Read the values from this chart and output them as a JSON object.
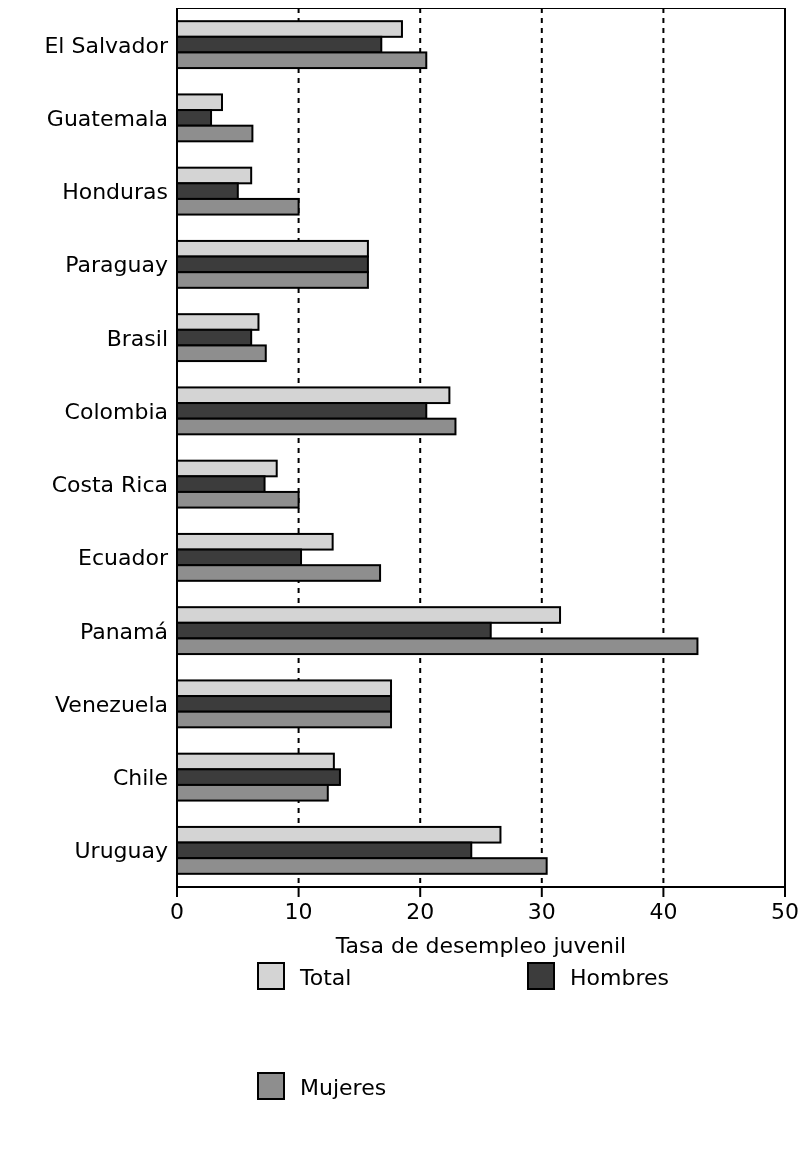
{
  "chart_data": {
    "type": "bar",
    "orientation": "horizontal",
    "xlabel": "Tasa de desempleo juvenil",
    "categories": [
      "El Salvador",
      "Guatemala",
      "Honduras",
      "Paraguay",
      "Brasil",
      "Colombia",
      "Costa Rica",
      "Ecuador",
      "Panamá",
      "Venezuela",
      "Chile",
      "Uruguay"
    ],
    "series": [
      {
        "name": "Total",
        "color": "#d4d4d4",
        "values": [
          18.5,
          3.7,
          6.1,
          15.7,
          6.7,
          22.4,
          8.2,
          12.8,
          31.5,
          17.6,
          12.9,
          26.6
        ]
      },
      {
        "name": "Hombres",
        "color": "#3c3c3c",
        "values": [
          16.8,
          2.8,
          5.0,
          15.7,
          6.1,
          20.5,
          7.2,
          10.2,
          25.8,
          17.6,
          13.4,
          24.2
        ]
      },
      {
        "name": "Mujeres",
        "color": "#8e8e8e",
        "values": [
          20.5,
          6.2,
          10.0,
          15.7,
          7.3,
          22.9,
          10.0,
          16.7,
          42.8,
          17.6,
          12.4,
          30.4
        ]
      }
    ],
    "xlim": [
      0,
      50
    ],
    "xticks": [
      0,
      10,
      20,
      30,
      40,
      50
    ],
    "grid": "x",
    "legend": "bottom"
  }
}
